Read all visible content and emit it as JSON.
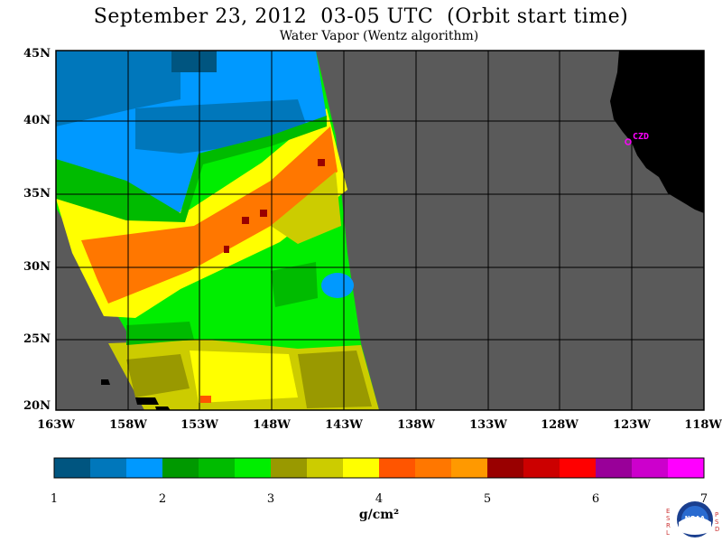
{
  "title": "September 23, 2012  03-05 UTC  (Orbit start time)",
  "subtitle": "Water Vapor (Wentz algorithm)",
  "map": {
    "lat_labels": [
      "45N",
      "40N",
      "35N",
      "30N",
      "25N",
      "20N"
    ],
    "lon_labels": [
      "163W",
      "158W",
      "153W",
      "148W",
      "143W",
      "138W",
      "133W",
      "128W",
      "123W",
      "118W"
    ],
    "station_label": "CZD",
    "colors": {
      "no_data": "#5a5a5a",
      "land": "#000000",
      "grid": "#000000",
      "station": "#ff00ff"
    }
  },
  "colorbar": {
    "tick_labels": [
      "1",
      "2",
      "3",
      "4",
      "5",
      "6",
      "7"
    ],
    "unit": "g/cm²",
    "colors": [
      "#005580",
      "#0077bb",
      "#0099ff",
      "#009900",
      "#00bb00",
      "#00ee00",
      "#999900",
      "#cccc00",
      "#ffff00",
      "#ff5500",
      "#ff7700",
      "#ff9900",
      "#990000",
      "#cc0000",
      "#ff0000",
      "#990099",
      "#cc00cc",
      "#ff00ff"
    ]
  },
  "logo": {
    "left_letters": [
      "E",
      "S",
      "R",
      "L"
    ],
    "right_letters": [
      "P",
      "S",
      "D"
    ],
    "text": "NOAA"
  }
}
